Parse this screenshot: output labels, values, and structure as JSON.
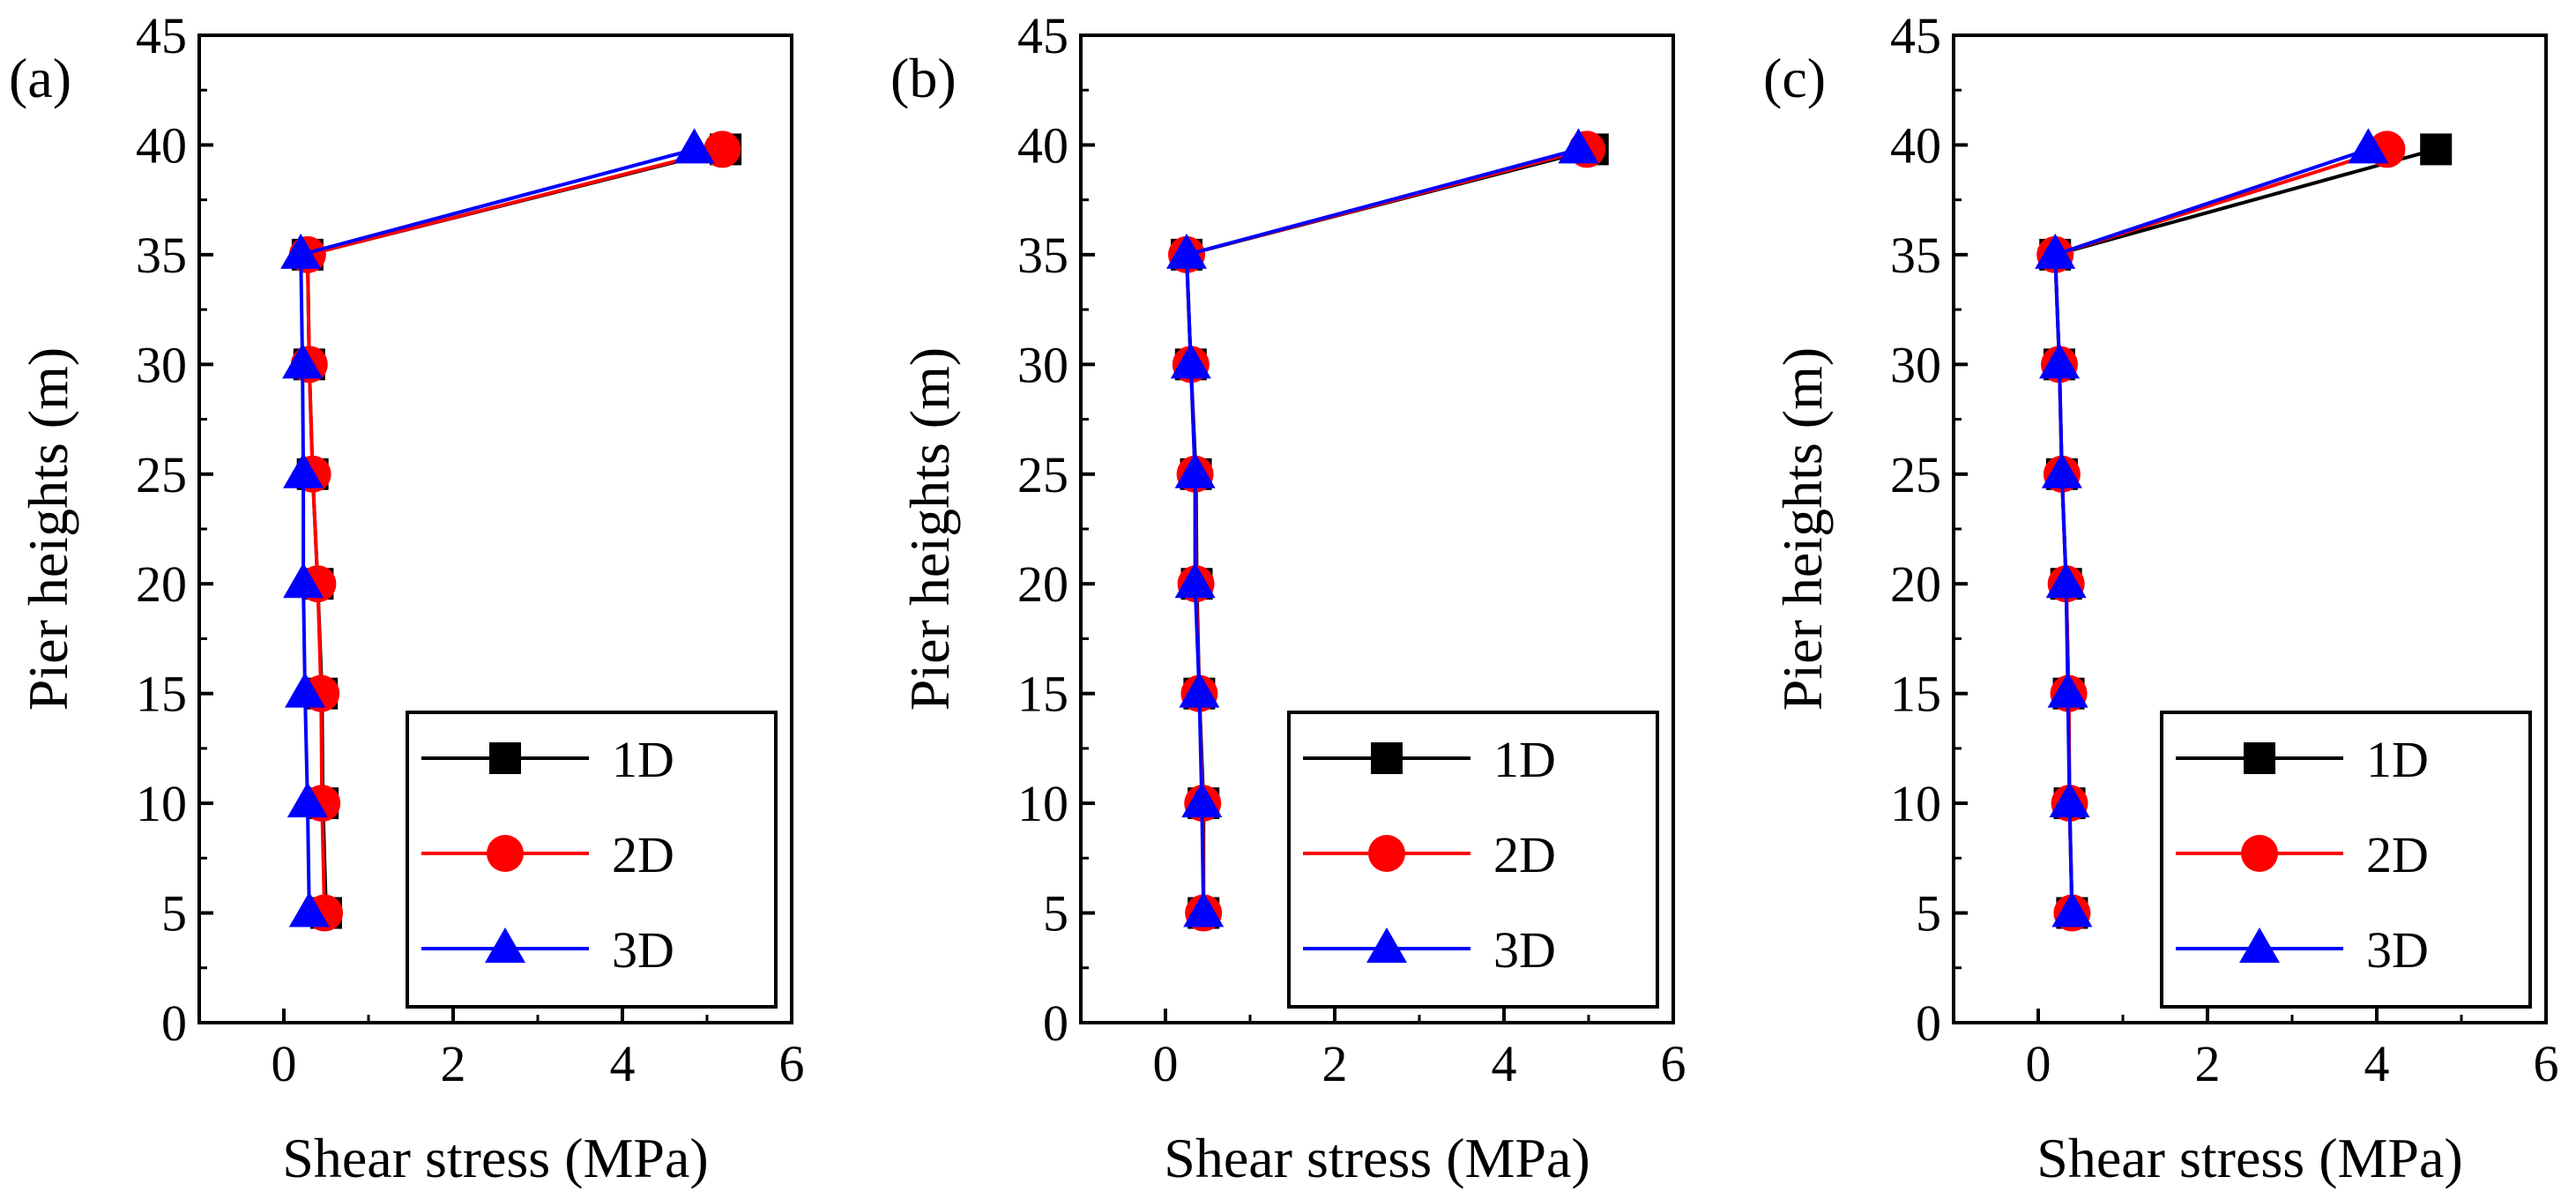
{
  "figure": {
    "background": "#ffffff"
  },
  "chart_data": [
    {
      "type": "line",
      "panel_label": "(a)",
      "xlabel": "Shear stress (MPa)",
      "ylabel": "Pier heights (m)",
      "xlim": [
        -1,
        6
      ],
      "ylim": [
        0,
        45
      ],
      "xticks": [
        0,
        2,
        4,
        6
      ],
      "yticks": [
        0,
        5,
        10,
        15,
        20,
        25,
        30,
        35,
        40,
        45
      ],
      "grid": false,
      "legend_position": "bottom-right",
      "series": [
        {
          "name": "1D",
          "color": "#000000",
          "marker": "square",
          "x": [
            0.5,
            0.46,
            0.45,
            0.4,
            0.34,
            0.3,
            0.28,
            5.22
          ],
          "y": [
            5,
            10,
            15,
            20,
            25,
            30,
            35,
            39.8
          ]
        },
        {
          "name": "2D",
          "color": "#ff0000",
          "marker": "circle",
          "x": [
            0.48,
            0.45,
            0.44,
            0.4,
            0.34,
            0.3,
            0.28,
            5.18
          ],
          "y": [
            5,
            10,
            15,
            20,
            25,
            30,
            35,
            39.8
          ]
        },
        {
          "name": "3D",
          "color": "#0000ff",
          "marker": "triangle",
          "x": [
            0.3,
            0.28,
            0.25,
            0.23,
            0.23,
            0.22,
            0.2,
            4.85
          ],
          "y": [
            5,
            10,
            15,
            20,
            25,
            30,
            35,
            39.8
          ]
        }
      ]
    },
    {
      "type": "line",
      "panel_label": "(b)",
      "xlabel": "Shear stress (MPa)",
      "ylabel": "Pier heights (m)",
      "xlim": [
        -1,
        6
      ],
      "ylim": [
        0,
        45
      ],
      "xticks": [
        0,
        2,
        4,
        6
      ],
      "yticks": [
        0,
        5,
        10,
        15,
        20,
        25,
        30,
        35,
        40,
        45
      ],
      "grid": false,
      "legend_position": "bottom-right",
      "series": [
        {
          "name": "1D",
          "color": "#000000",
          "marker": "square",
          "x": [
            0.45,
            0.45,
            0.4,
            0.37,
            0.36,
            0.3,
            0.25,
            5.05
          ],
          "y": [
            5,
            10,
            15,
            20,
            25,
            30,
            35,
            39.8
          ]
        },
        {
          "name": "2D",
          "color": "#ff0000",
          "marker": "circle",
          "x": [
            0.45,
            0.44,
            0.4,
            0.36,
            0.35,
            0.3,
            0.25,
            4.98
          ],
          "y": [
            5,
            10,
            15,
            20,
            25,
            30,
            35,
            39.8
          ]
        },
        {
          "name": "3D",
          "color": "#0000ff",
          "marker": "triangle",
          "x": [
            0.45,
            0.43,
            0.4,
            0.35,
            0.35,
            0.3,
            0.25,
            4.88
          ],
          "y": [
            5,
            10,
            15,
            20,
            25,
            30,
            35,
            39.8
          ]
        }
      ]
    },
    {
      "type": "line",
      "panel_label": "(c)",
      "xlabel": "Shear stress (MPa)",
      "ylabel": "Pier heights (m)",
      "xlim": [
        -1,
        6
      ],
      "ylim": [
        0,
        45
      ],
      "xticks": [
        0,
        2,
        4,
        6
      ],
      "yticks": [
        0,
        5,
        10,
        15,
        20,
        25,
        30,
        35,
        40,
        45
      ],
      "grid": false,
      "legend_position": "bottom-right",
      "series": [
        {
          "name": "1D",
          "color": "#000000",
          "marker": "square",
          "x": [
            0.4,
            0.37,
            0.36,
            0.33,
            0.28,
            0.25,
            0.2,
            4.7
          ],
          "y": [
            5,
            10,
            15,
            20,
            25,
            30,
            35,
            39.8
          ]
        },
        {
          "name": "2D",
          "color": "#ff0000",
          "marker": "circle",
          "x": [
            0.4,
            0.37,
            0.36,
            0.33,
            0.28,
            0.25,
            0.2,
            4.12
          ],
          "y": [
            5,
            10,
            15,
            20,
            25,
            30,
            35,
            39.8
          ]
        },
        {
          "name": "3D",
          "color": "#0000ff",
          "marker": "triangle",
          "x": [
            0.4,
            0.37,
            0.35,
            0.33,
            0.28,
            0.25,
            0.2,
            3.9
          ],
          "y": [
            5,
            10,
            15,
            20,
            25,
            30,
            35,
            39.8
          ]
        }
      ]
    }
  ]
}
